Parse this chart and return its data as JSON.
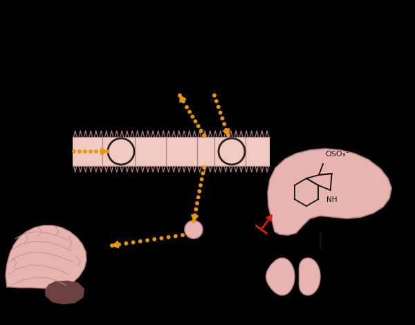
{
  "bg_color": "#000000",
  "organ_color": "#e8b4b0",
  "organ_edge": "#b08080",
  "arrow_color": "#e8960a",
  "red_arrow_color": "#dd2200",
  "intestine_color": "#f0cac0",
  "brain_color": "#e8b4b0",
  "brain_gyri": "#c09090",
  "brain_dark": "#6a4040",
  "chem_line": "#111111",
  "chem_text_color": "#111111",
  "kidney_color": "#e8b4b0"
}
